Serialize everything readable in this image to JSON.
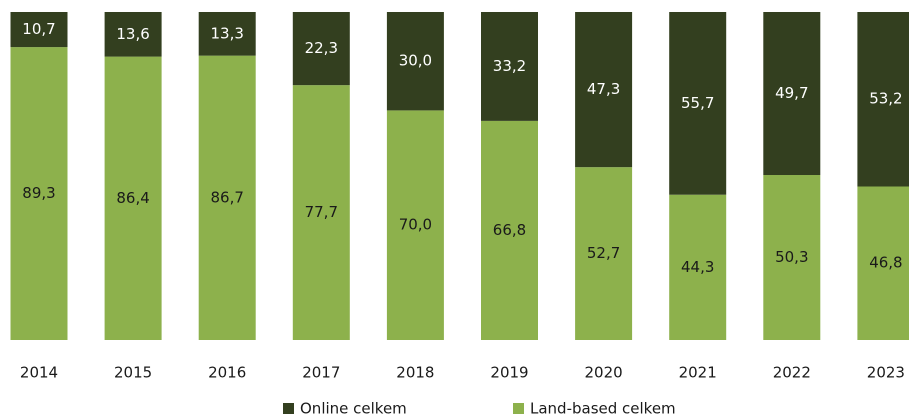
{
  "chart_data": {
    "type": "stacked_bar",
    "categories": [
      "2014",
      "2015",
      "2016",
      "2017",
      "2018",
      "2019",
      "2020",
      "2021",
      "2022",
      "2023"
    ],
    "series": [
      {
        "name": "Online celkem",
        "color": "#333f1f",
        "values": [
          10.7,
          13.6,
          13.3,
          22.3,
          30.0,
          33.2,
          47.3,
          55.7,
          49.7,
          53.2
        ],
        "value_labels": [
          "10,7",
          "13,6",
          "13,3",
          "22,3",
          "30,0",
          "33,2",
          "47,3",
          "55,7",
          "49,7",
          "53,2"
        ]
      },
      {
        "name": "Land-based celkem",
        "color": "#8db14c",
        "values": [
          89.3,
          86.4,
          86.7,
          77.7,
          70.0,
          66.8,
          52.7,
          44.3,
          50.3,
          46.8
        ],
        "value_labels": [
          "89,3",
          "86,4",
          "86,7",
          "77,7",
          "70,0",
          "66,8",
          "52,7",
          "44,3",
          "50,3",
          "46,8"
        ]
      }
    ],
    "legend": "bottom"
  }
}
